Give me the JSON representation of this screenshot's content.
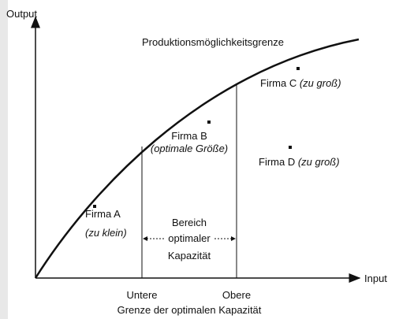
{
  "axes": {
    "y_label": "Output",
    "x_label": "Input"
  },
  "curve_label": "Produktionsmöglichkeitsgrenze",
  "firms": [
    {
      "name": "Firma A",
      "note": "(zu klein)"
    },
    {
      "name": "Firma B",
      "note": "(optimale Größe)"
    },
    {
      "name": "Firma C",
      "note": "(zu groß)"
    },
    {
      "name": "Firma D",
      "note": "(zu groß)"
    }
  ],
  "range": {
    "line1": "Bereich",
    "line2": "optimaler",
    "line3": "Kapazität"
  },
  "bounds": {
    "lower": "Untere",
    "upper": "Obere",
    "caption": "Grenze der optimalen Kapazität"
  }
}
